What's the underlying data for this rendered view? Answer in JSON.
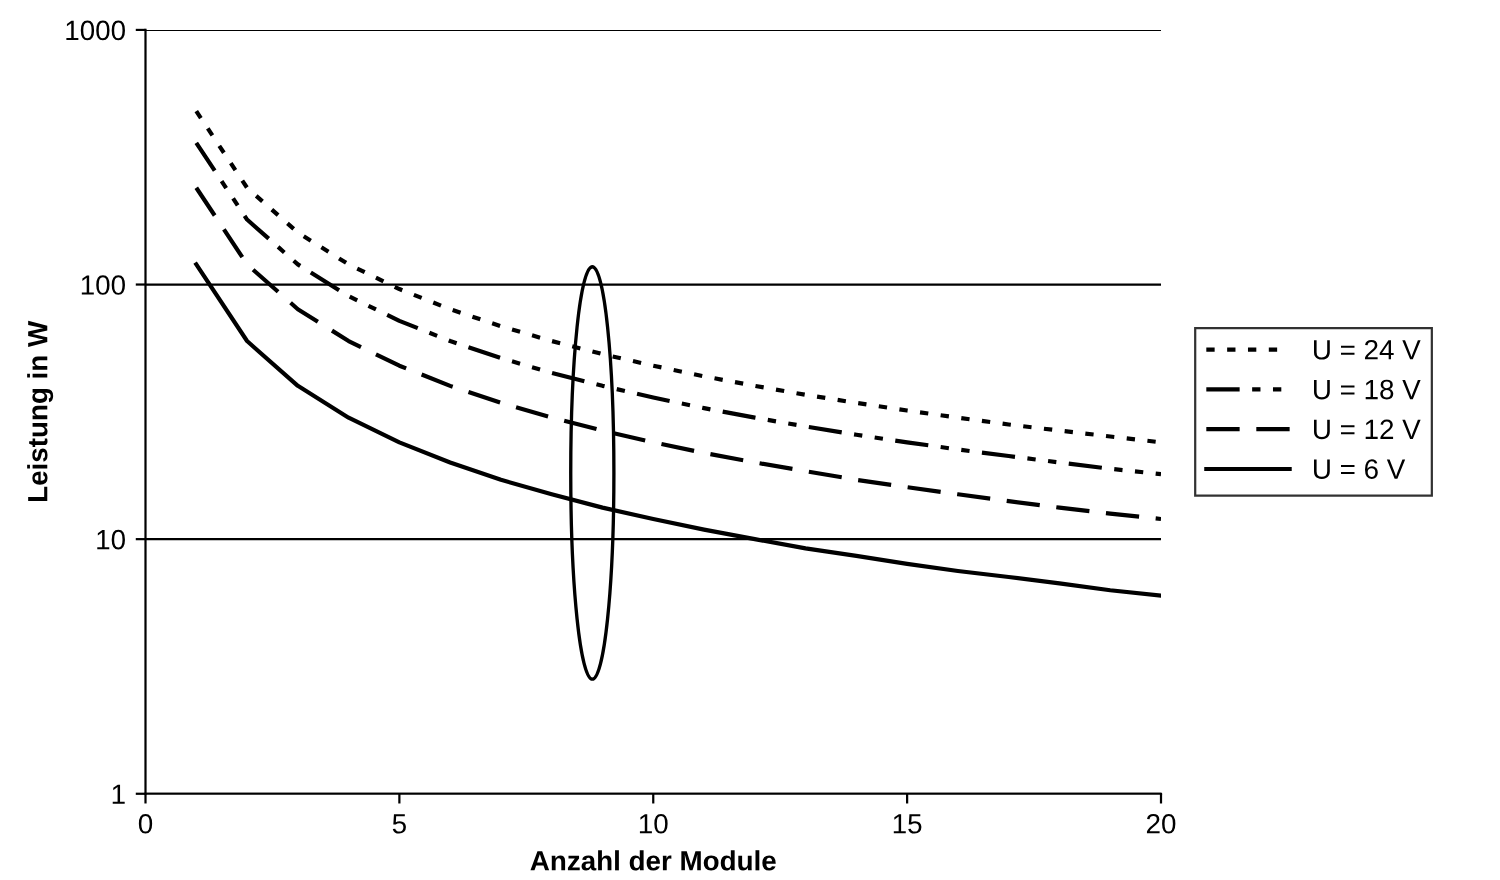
{
  "chart_data": {
    "type": "line",
    "xlabel": "Anzahl der Module",
    "ylabel": "Leistung in W",
    "log": "y",
    "x": [
      1,
      2,
      3,
      4,
      5,
      6,
      7,
      8,
      9,
      10,
      11,
      12,
      13,
      14,
      15,
      16,
      17,
      18,
      19,
      20
    ],
    "series": [
      {
        "name": "U = 24 V",
        "color": "#000000",
        "line_style": "dotted",
        "values": [
          480,
          240,
          160,
          120,
          96,
          80,
          68.6,
          60,
          53.3,
          48,
          43.6,
          40,
          36.9,
          34.3,
          32,
          30,
          28.2,
          26.7,
          25.3,
          24
        ]
      },
      {
        "name": "U = 18 V",
        "color": "#000000",
        "line_style": "dashdot",
        "values": [
          360,
          180,
          120,
          90,
          72,
          60,
          51.4,
          45,
          40,
          36,
          32.7,
          30,
          27.7,
          25.7,
          24,
          22.5,
          21.2,
          20,
          18.9,
          18
        ]
      },
      {
        "name": "U = 12 V",
        "color": "#000000",
        "line_style": "dashed",
        "values": [
          240,
          120,
          80,
          60,
          48,
          40,
          34.3,
          30,
          26.7,
          24,
          21.8,
          20,
          18.5,
          17.1,
          16,
          15,
          14.1,
          13.3,
          12.6,
          12
        ]
      },
      {
        "name": "U = 6 V",
        "color": "#000000",
        "line_style": "solid",
        "values": [
          120,
          60,
          40,
          30,
          24,
          20,
          17.1,
          15,
          13.3,
          12,
          10.9,
          10,
          9.2,
          8.6,
          8,
          7.5,
          7.1,
          6.7,
          6.3,
          6
        ]
      }
    ],
    "xlim": [
      0,
      20
    ],
    "xticks": [
      0,
      5,
      10,
      15,
      20
    ],
    "ylim": [
      1,
      1000
    ],
    "yticks": [
      1,
      10,
      100,
      1000
    ],
    "grid": "y",
    "legend": "right",
    "marker": "none"
  }
}
